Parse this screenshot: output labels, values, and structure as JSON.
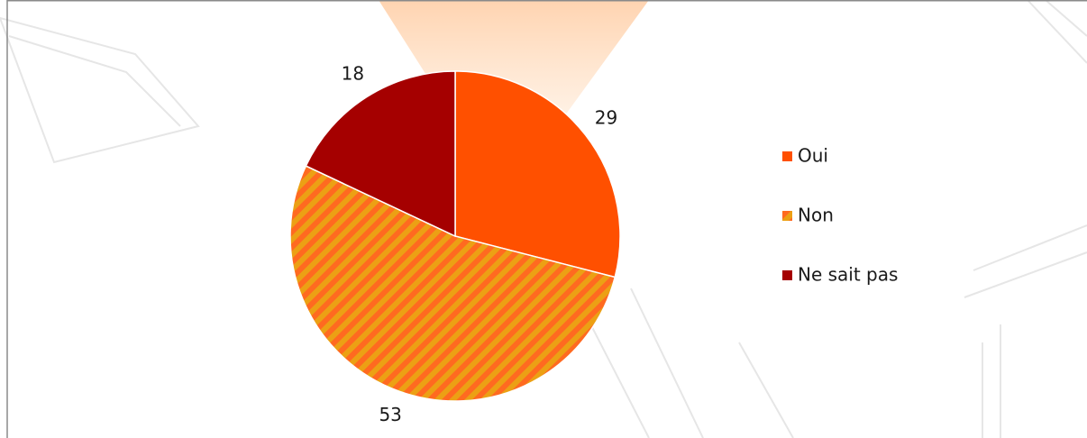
{
  "chart_data": {
    "type": "pie",
    "categories": [
      "Oui",
      "Non",
      "Ne sait pas"
    ],
    "values": [
      29,
      53,
      18
    ],
    "colors": [
      "#ff5000",
      "#eca014",
      "#a50000"
    ],
    "patterns": [
      "solid",
      "stripes",
      "solid"
    ],
    "hatch_color": "#ff6a20",
    "legend": "right"
  }
}
